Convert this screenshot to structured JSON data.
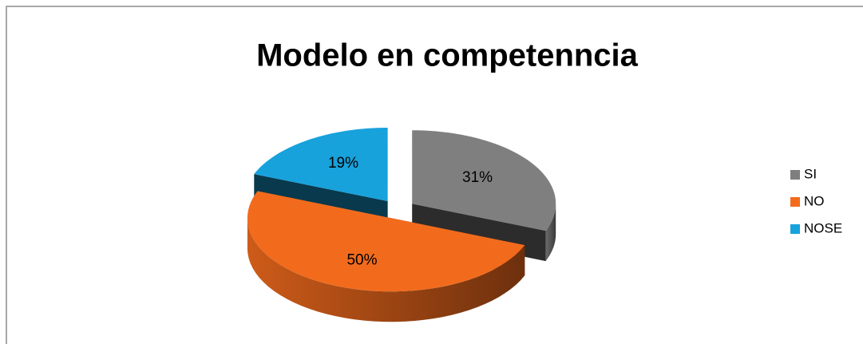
{
  "chart_data": {
    "type": "pie",
    "title": "Modelo en competenncia",
    "categories": [
      "SI",
      "NO",
      "NOSE"
    ],
    "values": [
      31,
      50,
      19
    ],
    "value_labels": [
      "31%",
      "50%",
      "19%"
    ],
    "colors": [
      "#7f7f7f",
      "#f26b1d",
      "#17a2dc"
    ],
    "legend": "right"
  }
}
